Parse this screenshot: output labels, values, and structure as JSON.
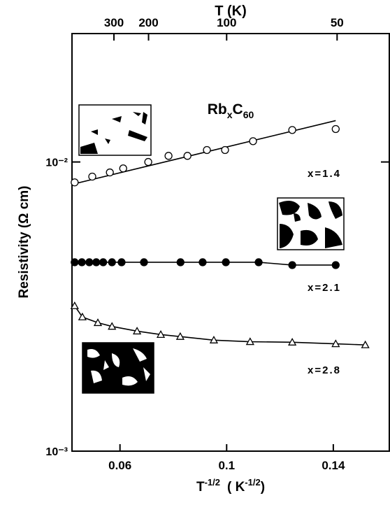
{
  "chart_data": {
    "type": "scatter",
    "title_parts": [
      "Rb",
      "x",
      "C",
      "60"
    ],
    "x_label_parts": [
      "T",
      "-1/2",
      "( K",
      "-1/2",
      ")"
    ],
    "y_label": "Resistivity (Ω cm)",
    "top_axis": {
      "label": "T (K)",
      "ticks": [
        300,
        200,
        100,
        50
      ]
    },
    "xlim": [
      0.042,
      0.161
    ],
    "xticks": [
      0.06,
      0.1,
      0.14
    ],
    "ylim": [
      0.001,
      0.0278
    ],
    "log_y": true,
    "yticks": [
      {
        "value": 0.01,
        "label": "10⁻²"
      },
      {
        "value": 0.001,
        "label": "10⁻³"
      }
    ],
    "series": [
      {
        "name": "x=1.4",
        "marker": "open-circle",
        "color": "#000000",
        "x": [
          0.043,
          0.0496,
          0.0562,
          0.0612,
          0.0706,
          0.0782,
          0.0853,
          0.0926,
          0.0994,
          0.1099,
          0.1246,
          0.1409
        ],
        "values": [
          0.0085,
          0.0089,
          0.0092,
          0.0095,
          0.01,
          0.0105,
          0.0105,
          0.011,
          0.011,
          0.0118,
          0.0129,
          0.013
        ],
        "fit": {
          "x": [
            0.043,
            0.1409
          ],
          "values": [
            0.00841,
            0.0139
          ]
        }
      },
      {
        "name": "x=2.1",
        "marker": "filled-circle",
        "color": "#000000",
        "x": [
          0.043,
          0.0457,
          0.0485,
          0.0511,
          0.0537,
          0.057,
          0.0606,
          0.069,
          0.0827,
          0.091,
          0.0997,
          0.112,
          0.1246,
          0.1409
        ],
        "values": [
          0.0045,
          0.0045,
          0.0045,
          0.0045,
          0.0045,
          0.0045,
          0.0045,
          0.0045,
          0.0045,
          0.0045,
          0.0045,
          0.0045,
          0.0044,
          0.0044
        ]
      },
      {
        "name": "x=2.8",
        "marker": "open-triangle",
        "color": "#000000",
        "x": [
          0.043,
          0.0459,
          0.0517,
          0.057,
          0.0664,
          0.0753,
          0.0826,
          0.0952,
          0.1088,
          0.1246,
          0.1409,
          0.152
        ],
        "values": [
          0.00318,
          0.00291,
          0.00278,
          0.0027,
          0.0026,
          0.00253,
          0.00249,
          0.00242,
          0.00239,
          0.00238,
          0.00235,
          0.00233
        ]
      }
    ]
  }
}
